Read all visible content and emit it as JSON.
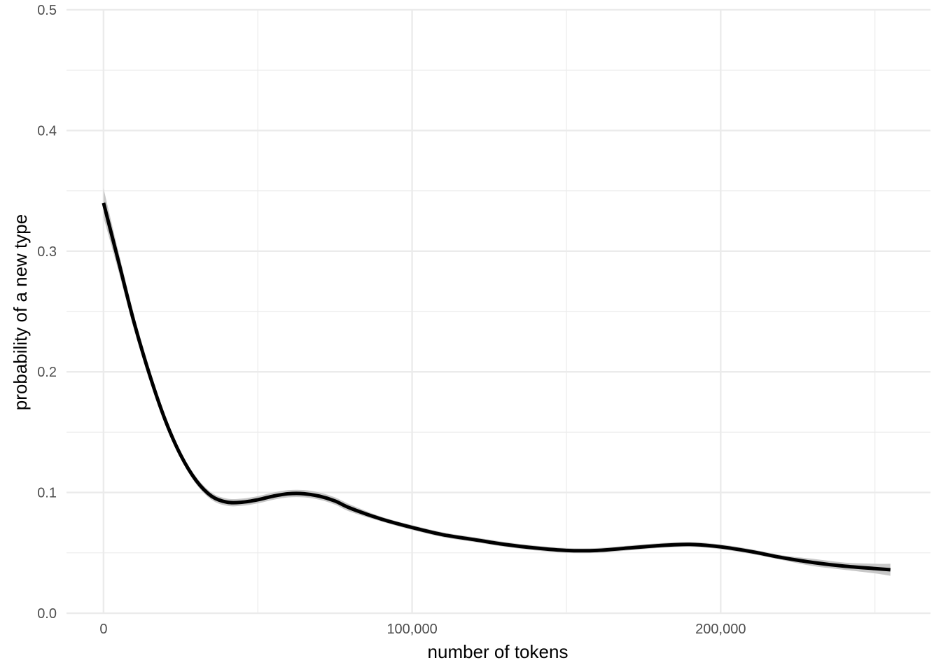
{
  "chart_data": {
    "type": "line",
    "title": "",
    "xlabel": "number of tokens",
    "ylabel": "probability of a new type",
    "xlim": [
      -12000,
      268000
    ],
    "ylim": [
      0,
      0.5
    ],
    "x_ticks": [
      0,
      100000,
      200000
    ],
    "x_tick_labels": [
      "0",
      "100,000",
      "200,000"
    ],
    "x_minor_ticks": [
      50000,
      150000,
      250000
    ],
    "y_ticks": [
      0,
      0.1,
      0.2,
      0.3,
      0.4,
      0.5
    ],
    "y_tick_labels": [
      "0.0",
      "0.1",
      "0.2",
      "0.3",
      "0.4",
      "0.5"
    ],
    "y_minor_ticks": [
      0.05,
      0.15,
      0.25,
      0.35,
      0.45
    ],
    "grid": true,
    "legend": "none",
    "colors": {
      "line": "#000000",
      "ribbon": "#c8c8c8",
      "grid": "#ebebeb"
    },
    "series": [
      {
        "x": [
          0,
          5000,
          10000,
          15000,
          20000,
          25000,
          30000,
          35000,
          40000,
          45000,
          50000,
          55000,
          60000,
          65000,
          70000,
          75000,
          80000,
          90000,
          100000,
          110000,
          120000,
          130000,
          140000,
          150000,
          160000,
          170000,
          180000,
          190000,
          200000,
          210000,
          220000,
          230000,
          240000,
          250000,
          255000
        ],
        "y": [
          0.34,
          0.29,
          0.24,
          0.197,
          0.16,
          0.131,
          0.11,
          0.097,
          0.092,
          0.092,
          0.094,
          0.097,
          0.099,
          0.099,
          0.097,
          0.093,
          0.087,
          0.078,
          0.071,
          0.065,
          0.061,
          0.057,
          0.054,
          0.052,
          0.052,
          0.054,
          0.056,
          0.057,
          0.055,
          0.051,
          0.046,
          0.042,
          0.039,
          0.037,
          0.036
        ],
        "ribbon": [
          0.012,
          0.008,
          0.006,
          0.005,
          0.004,
          0.003,
          0.003,
          0.003,
          0.003,
          0.003,
          0.003,
          0.003,
          0.003,
          0.003,
          0.003,
          0.003,
          0.003,
          0.002,
          0.002,
          0.002,
          0.002,
          0.002,
          0.002,
          0.002,
          0.002,
          0.002,
          0.002,
          0.002,
          0.002,
          0.002,
          0.002,
          0.003,
          0.003,
          0.004,
          0.005
        ]
      }
    ]
  }
}
